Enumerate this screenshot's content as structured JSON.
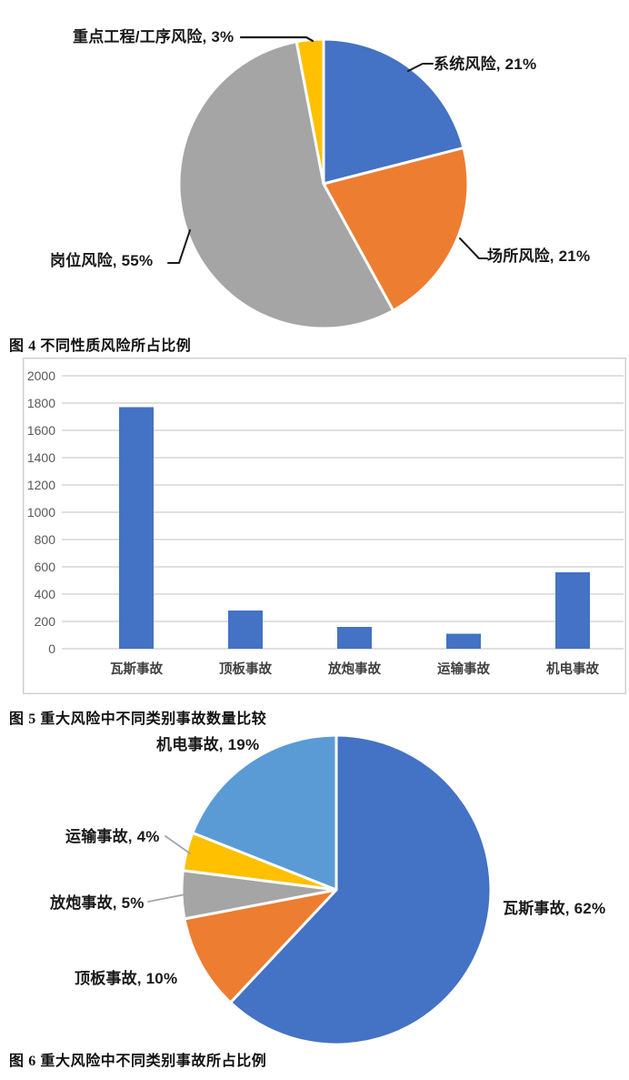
{
  "page": {
    "background": "#ffffff"
  },
  "chart_data": [
    {
      "type": "pie",
      "title": "图 4 不同性质风险所占比例",
      "labels": [
        "系统风险",
        "场所风险",
        "岗位风险",
        "重点工程/工序风险"
      ],
      "values": [
        21,
        21,
        55,
        3
      ],
      "colors": [
        "#4472C4",
        "#ED7D31",
        "#A5A5A5",
        "#FFC000"
      ],
      "label_suffix": "%",
      "start_angle": "12-oclock",
      "direction": "clockwise",
      "legend": "none",
      "slice_border_color": "#ffffff"
    },
    {
      "type": "bar",
      "title": "图 5 重大风险中不同类别事故数量比较",
      "categories": [
        "瓦斯事故",
        "顶板事故",
        "放炮事故",
        "运输事故",
        "机电事故"
      ],
      "values": [
        1770,
        280,
        160,
        110,
        560
      ],
      "ylim": [
        0,
        2000
      ],
      "yticks": [
        0,
        200,
        400,
        600,
        800,
        1000,
        1200,
        1400,
        1600,
        1800,
        2000
      ],
      "xlabel": "",
      "ylabel": "",
      "bar_color": "#4472C4",
      "grid": true,
      "gridline_color": "#d6d6d6",
      "frame": true,
      "frame_color": "#c6c6c6",
      "tick_label_color": "#595959",
      "category_label_color": "#3f3f3f",
      "legend": "none"
    },
    {
      "type": "pie",
      "title": "图 6 重大风险中不同类别事故所占比例",
      "labels": [
        "瓦斯事故",
        "顶板事故",
        "放炮事故",
        "运输事故",
        "机电事故"
      ],
      "values": [
        62,
        10,
        5,
        4,
        19
      ],
      "colors": [
        "#4472C4",
        "#ED7D31",
        "#A5A5A5",
        "#FFC000",
        "#5B9BD5"
      ],
      "label_suffix": "%",
      "start_angle": "12-oclock",
      "direction": "clockwise",
      "legend": "none",
      "slice_border_color": "#ffffff",
      "leader_line_color": "#a6a6a6"
    }
  ]
}
